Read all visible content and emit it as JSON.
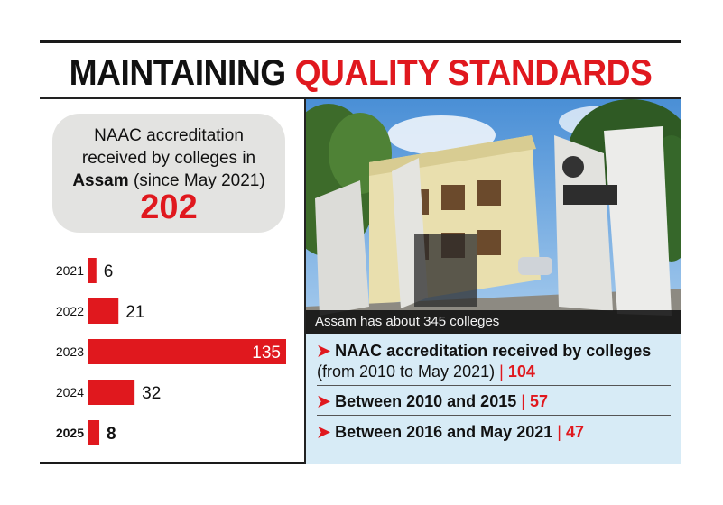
{
  "headline": {
    "part1": "MAINTAINING",
    "part2": "QUALITY STANDARDS"
  },
  "summary": {
    "line1": "NAAC accreditation",
    "line2": "received by colleges in",
    "line3_bold": "Assam",
    "line3_rest": "(since May 2021)",
    "total": "202"
  },
  "chart_data": {
    "type": "bar",
    "orientation": "horizontal",
    "categories": [
      "2021",
      "2022",
      "2023",
      "2024",
      "2025"
    ],
    "values": [
      6,
      21,
      135,
      32,
      8
    ],
    "value_labels": [
      "6",
      "21",
      "135",
      "32",
      "8"
    ],
    "bold_category": "2025",
    "title": "",
    "xlabel": "",
    "ylabel": "",
    "xlim": [
      0,
      135
    ],
    "grid": false,
    "bar_color": "#e0181e"
  },
  "photo": {
    "caption": "Assam has about 345 colleges"
  },
  "facts": [
    {
      "bold": "NAAC accreditation received by colleges",
      "rest": "(from 2010 to May 2021)",
      "value": "104"
    },
    {
      "bold": "Between 2010 and 2015",
      "rest": "",
      "value": "57"
    },
    {
      "bold": "Between 2016 and May 2021",
      "rest": "",
      "value": "47"
    }
  ],
  "colors": {
    "accent": "#e0181e",
    "pill": "#e3e3e1",
    "facts_bg": "#d7ebf6"
  }
}
